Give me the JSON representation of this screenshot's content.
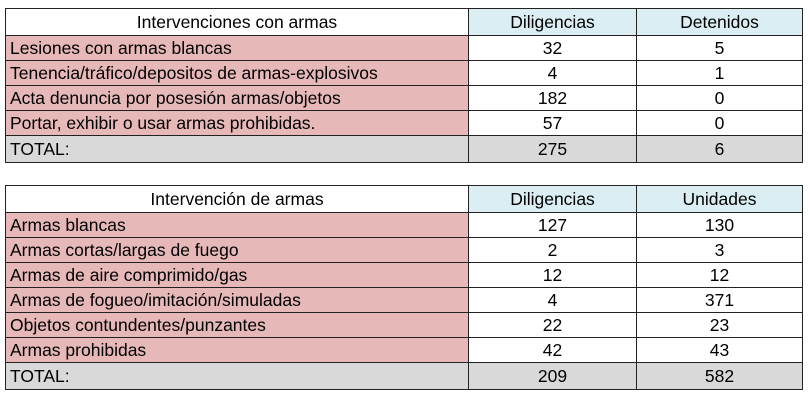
{
  "tables": [
    {
      "header": [
        "Intervenciones con armas",
        "Diligencias",
        "Detenidos"
      ],
      "rows": [
        [
          "Lesiones con armas blancas",
          32,
          5
        ],
        [
          "Tenencia/tráfico/depositos de armas-explosivos",
          4,
          1
        ],
        [
          "Acta denuncia por posesión armas/objetos",
          182,
          0
        ],
        [
          "Portar, exhibir o usar armas prohibidas.",
          57,
          0
        ]
      ],
      "total": [
        "TOTAL:",
        275,
        6
      ]
    },
    {
      "header": [
        "Intervención de armas",
        "Diligencias",
        "Unidades"
      ],
      "rows": [
        [
          "Armas blancas",
          127,
          130
        ],
        [
          "Armas cortas/largas de fuego",
          2,
          3
        ],
        [
          "Armas de aire comprimido/gas",
          12,
          12
        ],
        [
          "Armas de fogueo/imitación/simuladas",
          4,
          371
        ],
        [
          "Objetos contundentes/punzantes",
          22,
          23
        ],
        [
          "Armas prohibidas",
          42,
          43
        ]
      ],
      "total": [
        "TOTAL:",
        209,
        582
      ]
    }
  ]
}
